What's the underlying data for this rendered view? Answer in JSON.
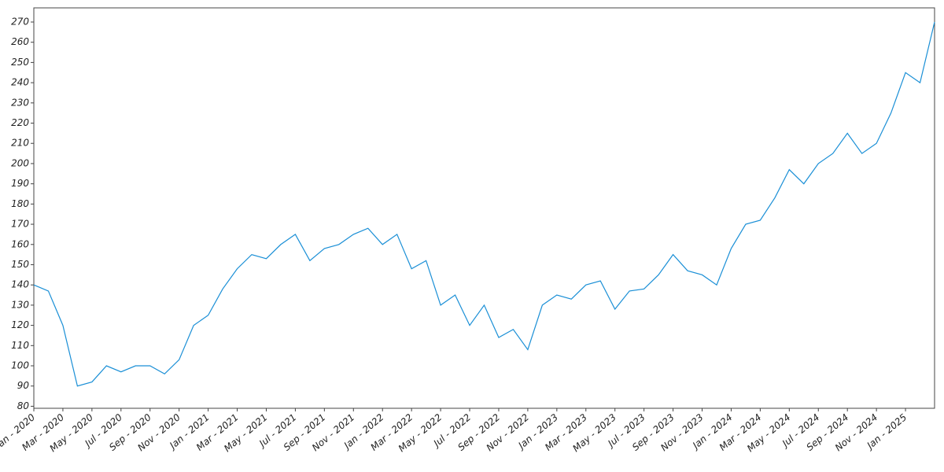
{
  "chart_data": {
    "type": "line",
    "x": [
      "2020-01",
      "2020-02",
      "2020-03",
      "2020-04",
      "2020-05",
      "2020-06",
      "2020-07",
      "2020-08",
      "2020-09",
      "2020-10",
      "2020-11",
      "2020-12",
      "2021-01",
      "2021-02",
      "2021-03",
      "2021-04",
      "2021-05",
      "2021-06",
      "2021-07",
      "2021-08",
      "2021-09",
      "2021-10",
      "2021-11",
      "2021-12",
      "2022-01",
      "2022-02",
      "2022-03",
      "2022-04",
      "2022-05",
      "2022-06",
      "2022-07",
      "2022-08",
      "2022-09",
      "2022-10",
      "2022-11",
      "2022-12",
      "2023-01",
      "2023-02",
      "2023-03",
      "2023-04",
      "2023-05",
      "2023-06",
      "2023-07",
      "2023-08",
      "2023-09",
      "2023-10",
      "2023-11",
      "2023-12",
      "2024-01",
      "2024-02",
      "2024-03",
      "2024-04",
      "2024-05",
      "2024-06",
      "2024-07",
      "2024-08",
      "2024-09",
      "2024-10",
      "2024-11",
      "2024-12",
      "2025-01",
      "2025-02",
      "2025-03"
    ],
    "series": [
      {
        "color": "#1a8fd6",
        "values": [
          140,
          137,
          120,
          90,
          92,
          100,
          97,
          100,
          100,
          96,
          103,
          120,
          125,
          138,
          148,
          155,
          153,
          160,
          165,
          152,
          158,
          160,
          165,
          168,
          160,
          165,
          148,
          152,
          130,
          135,
          120,
          130,
          114,
          118,
          108,
          130,
          135,
          133,
          140,
          142,
          128,
          137,
          138,
          145,
          155,
          147,
          145,
          140,
          158,
          170,
          172,
          183,
          197,
          190,
          200,
          205,
          215,
          205,
          210,
          225,
          245,
          240,
          270
        ]
      }
    ],
    "xlim": [
      "2020-01",
      "2025-03"
    ],
    "xticks": [
      {
        "value": "2020-01",
        "label": "Jan - 2020"
      },
      {
        "value": "2020-03",
        "label": "Mar - 2020"
      },
      {
        "value": "2020-05",
        "label": "May - 2020"
      },
      {
        "value": "2020-07",
        "label": "Jul - 2020"
      },
      {
        "value": "2020-09",
        "label": "Sep - 2020"
      },
      {
        "value": "2020-11",
        "label": "Nov - 2020"
      },
      {
        "value": "2021-01",
        "label": "Jan - 2021"
      },
      {
        "value": "2021-03",
        "label": "Mar - 2021"
      },
      {
        "value": "2021-05",
        "label": "May - 2021"
      },
      {
        "value": "2021-07",
        "label": "Jul - 2021"
      },
      {
        "value": "2021-09",
        "label": "Sep - 2021"
      },
      {
        "value": "2021-11",
        "label": "Nov - 2021"
      },
      {
        "value": "2022-01",
        "label": "Jan - 2022"
      },
      {
        "value": "2022-03",
        "label": "Mar - 2022"
      },
      {
        "value": "2022-05",
        "label": "May - 2022"
      },
      {
        "value": "2022-07",
        "label": "Jul - 2022"
      },
      {
        "value": "2022-09",
        "label": "Sep - 2022"
      },
      {
        "value": "2022-11",
        "label": "Nov - 2022"
      },
      {
        "value": "2023-01",
        "label": "Jan - 2023"
      },
      {
        "value": "2023-03",
        "label": "Mar - 2023"
      },
      {
        "value": "2023-05",
        "label": "May - 2023"
      },
      {
        "value": "2023-07",
        "label": "Jul - 2023"
      },
      {
        "value": "2023-09",
        "label": "Sep - 2023"
      },
      {
        "value": "2023-11",
        "label": "Nov - 2023"
      },
      {
        "value": "2024-01",
        "label": "Jan - 2024"
      },
      {
        "value": "2024-03",
        "label": "Mar - 2024"
      },
      {
        "value": "2024-05",
        "label": "May - 2024"
      },
      {
        "value": "2024-07",
        "label": "Jul - 2024"
      },
      {
        "value": "2024-09",
        "label": "Sep - 2024"
      },
      {
        "value": "2024-11",
        "label": "Nov - 2024"
      },
      {
        "value": "2025-01",
        "label": "Jan - 2025"
      }
    ],
    "ylim": [
      79,
      277
    ],
    "yticks": [
      80,
      90,
      100,
      110,
      120,
      130,
      140,
      150,
      160,
      170,
      180,
      190,
      200,
      210,
      220,
      230,
      240,
      250,
      260,
      270
    ]
  }
}
